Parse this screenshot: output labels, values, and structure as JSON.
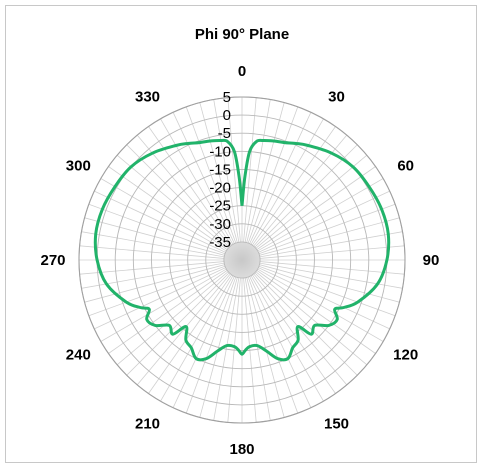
{
  "chart_data": {
    "type": "polar-line",
    "title": "Phi 90° Plane",
    "angle_labels": [
      "0",
      "30",
      "60",
      "90",
      "120",
      "150",
      "180",
      "210",
      "240",
      "270",
      "300",
      "330"
    ],
    "radial_range": [
      -40,
      5
    ],
    "radial_tick_labels": [
      "5",
      "0",
      "-5",
      "-10",
      "-15",
      "-20",
      "-25",
      "-30",
      "-35"
    ],
    "grid": true,
    "series": [
      {
        "color": "#21b36a",
        "theta_deg": [
          0,
          2,
          4,
          7,
          10,
          15,
          20,
          25,
          30,
          40,
          50,
          60,
          70,
          80,
          90,
          100,
          110,
          115,
          118,
          122,
          127,
          132,
          137,
          140,
          145,
          150,
          155,
          160,
          165,
          170,
          175,
          178,
          180,
          182,
          185,
          190,
          195,
          200,
          205,
          210,
          215,
          220,
          223,
          228,
          233,
          238,
          242,
          245,
          250,
          260,
          270,
          280,
          290,
          300,
          310,
          320,
          330,
          335,
          340,
          345,
          350,
          353,
          356,
          358,
          360
        ],
        "r_db": [
          -25,
          -17,
          -10,
          -7,
          -6.5,
          -6,
          -5.5,
          -4.5,
          -3.5,
          -1.5,
          0,
          0.5,
          1,
          1,
          0,
          -2,
          -6,
          -9,
          -11,
          -9,
          -10,
          -13,
          -12,
          -16,
          -13,
          -12,
          -10,
          -11,
          -14,
          -16,
          -16,
          -15,
          -14,
          -15,
          -16,
          -16,
          -14,
          -11,
          -10,
          -12,
          -13,
          -16,
          -12,
          -13,
          -10,
          -9,
          -11,
          -9,
          -6,
          -2,
          0,
          1,
          1,
          0.5,
          0,
          -1.5,
          -3.5,
          -4.5,
          -5.5,
          -6,
          -6.5,
          -7,
          -10,
          -17,
          -25
        ]
      }
    ]
  }
}
